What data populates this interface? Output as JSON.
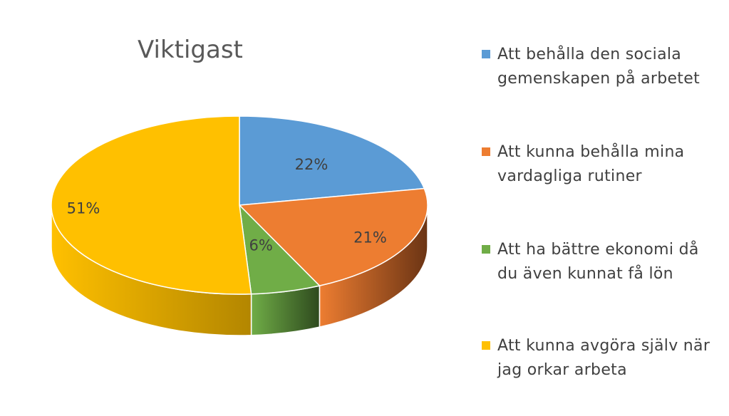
{
  "chart_data": {
    "type": "pie",
    "title": "Viktigast",
    "three_d": true,
    "legend_position": "right",
    "slices": [
      {
        "name": " Att behålla den sociala\ngemenskapen på arbetet",
        "value": 22,
        "label": "22%",
        "color": "#5B9BD5",
        "side_color": "#2E4F6E"
      },
      {
        "name": " Att kunna behålla mina\nvardagliga rutiner",
        "value": 21,
        "label": "21%",
        "color": "#ED7D31",
        "side_color": "#6B3414"
      },
      {
        "name": "Att ha bättre ekonomi då\ndu även kunnat få lön",
        "value": 6,
        "label": "6%",
        "color": "#70AD47",
        "side_color": "#2E4A1E"
      },
      {
        "name": "Att kunna avgöra själv när\njag orkar arbeta",
        "value": 51,
        "label": "51%",
        "color": "#FFC000",
        "side_color": "#B38600"
      }
    ]
  }
}
